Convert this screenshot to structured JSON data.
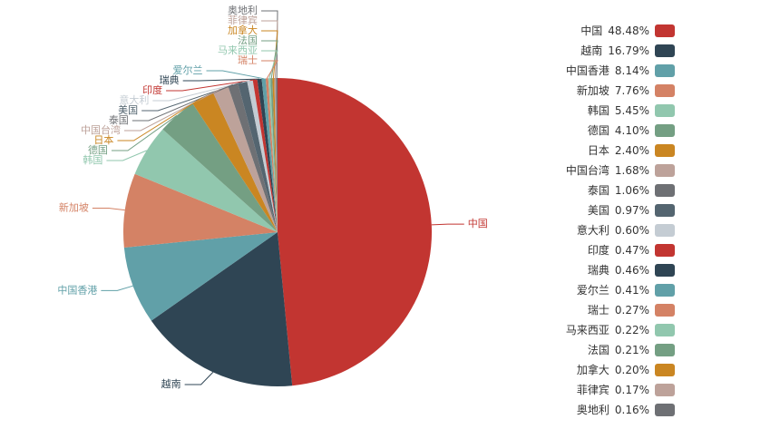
{
  "chart_data": {
    "type": "pie",
    "categories": [
      "中国",
      "越南",
      "中国香港",
      "新加坡",
      "韩国",
      "德国",
      "日本",
      "中国台湾",
      "泰国",
      "美国",
      "意大利",
      "印度",
      "瑞典",
      "爱尔兰",
      "瑞士",
      "马来西亚",
      "法国",
      "加拿大",
      "菲律宾",
      "奥地利"
    ],
    "values": [
      48.48,
      16.79,
      8.14,
      7.76,
      5.45,
      4.1,
      2.4,
      1.68,
      1.06,
      0.97,
      0.6,
      0.47,
      0.46,
      0.41,
      0.27,
      0.22,
      0.21,
      0.2,
      0.17,
      0.16
    ],
    "value_labels": [
      "48.48%",
      "16.79%",
      "8.14%",
      "7.76%",
      "5.45%",
      "4.10%",
      "2.40%",
      "1.68%",
      "1.06%",
      "0.97%",
      "0.60%",
      "0.47%",
      "0.46%",
      "0.41%",
      "0.27%",
      "0.22%",
      "0.21%",
      "0.20%",
      "0.17%",
      "0.16%"
    ],
    "colors": [
      "#c23531",
      "#2f4554",
      "#61a0a8",
      "#d48265",
      "#91c7ae",
      "#749f83",
      "#ca8622",
      "#bda29a",
      "#6e7074",
      "#546570",
      "#c4ccd3",
      "#c23531",
      "#2f4554",
      "#61a0a8",
      "#d48265",
      "#91c7ae",
      "#749f83",
      "#ca8622",
      "#bda29a",
      "#6e7074"
    ],
    "legend": "right"
  }
}
